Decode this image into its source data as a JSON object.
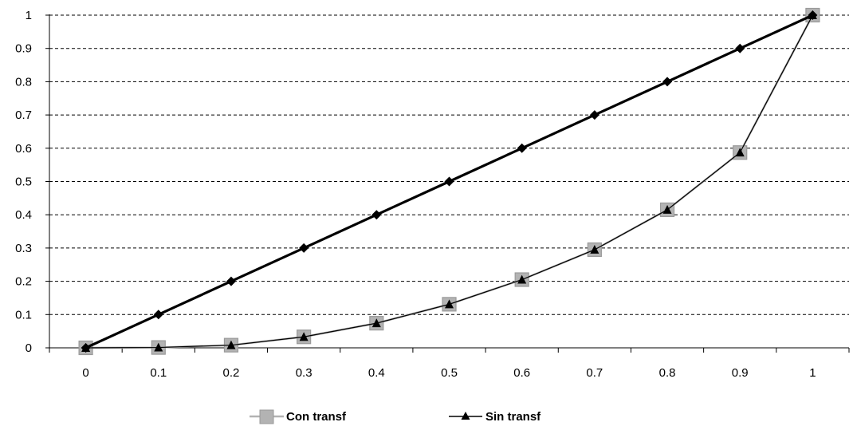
{
  "chart_data": {
    "type": "line",
    "title": "",
    "xlabel": "",
    "ylabel": "",
    "x": [
      0,
      0.1,
      0.2,
      0.3,
      0.4,
      0.5,
      0.6,
      0.7,
      0.8,
      0.9,
      1
    ],
    "xlim": [
      0,
      1
    ],
    "ylim": [
      0,
      1
    ],
    "x_ticks": [
      "0",
      "0.1",
      "0.2",
      "0.3",
      "0.4",
      "0.5",
      "0.6",
      "0.7",
      "0.8",
      "0.9",
      "1"
    ],
    "y_ticks": [
      "0",
      "0.1",
      "0.2",
      "0.3",
      "0.4",
      "0.5",
      "0.6",
      "0.7",
      "0.8",
      "0.9",
      "1"
    ],
    "grid": "horizontal-dashed",
    "legend_position": "bottom",
    "series": [
      {
        "name": "Con transf",
        "marker": "square",
        "color": "#b3b3b3",
        "values": [
          0,
          0.001,
          0.008,
          0.033,
          0.074,
          0.131,
          0.205,
          0.295,
          0.415,
          0.587,
          1.0
        ]
      },
      {
        "name": "Sin transf",
        "marker": "triangle",
        "color": "#000000",
        "values": [
          0,
          0.001,
          0.008,
          0.033,
          0.074,
          0.131,
          0.205,
          0.295,
          0.415,
          0.587,
          1.0
        ]
      },
      {
        "name": "",
        "marker": "diamond",
        "color": "#000000",
        "values": [
          0,
          0.1,
          0.2,
          0.3,
          0.4,
          0.5,
          0.6,
          0.7,
          0.8,
          0.9,
          1.0
        ]
      }
    ]
  }
}
